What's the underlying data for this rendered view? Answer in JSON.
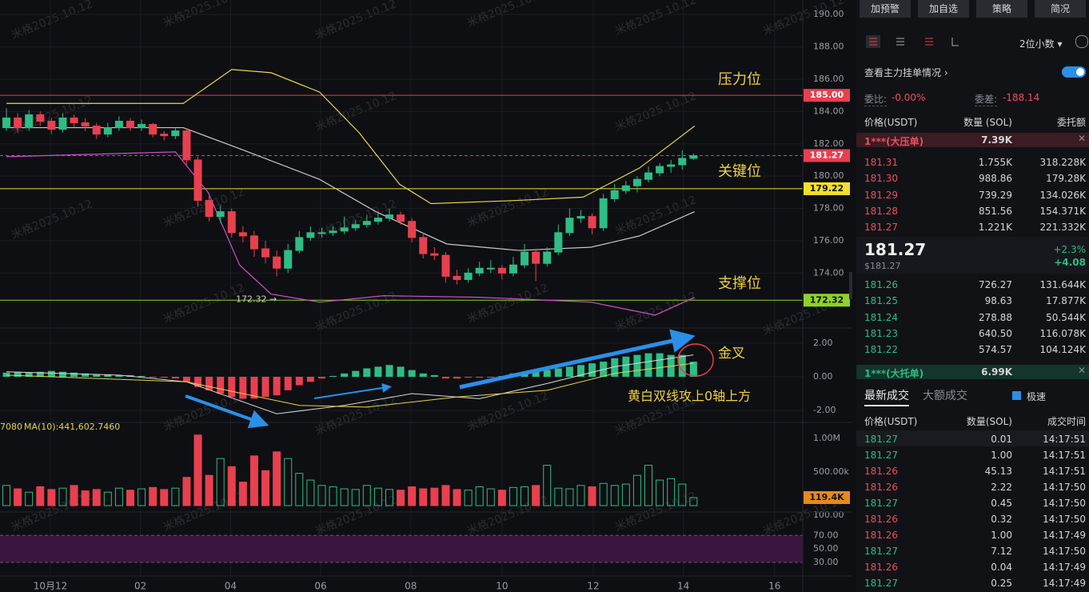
{
  "toolbar": {
    "buttons": [
      "加预警",
      "加自选",
      "策略",
      "简况"
    ]
  },
  "chart": {
    "watermark": "米格2025.10.12",
    "xlim": [
      -0.57,
      70.7
    ],
    "time_ticks": [
      {
        "value": 3.9,
        "label": "10月12"
      },
      {
        "value": 11.9,
        "label": "02"
      },
      {
        "value": 19.9,
        "label": "04"
      },
      {
        "value": 27.9,
        "label": "06"
      },
      {
        "value": 35.9,
        "label": "08"
      },
      {
        "value": 44.0,
        "label": "10"
      },
      {
        "value": 52.1,
        "label": "12"
      },
      {
        "value": 60.1,
        "label": "14"
      },
      {
        "value": 68.2,
        "label": "16"
      }
    ],
    "candles": [
      [
        183.0,
        184.2,
        182.8,
        183.6
      ],
      [
        183.6,
        183.9,
        182.7,
        183.0
      ],
      [
        183.0,
        184.1,
        182.8,
        183.8
      ],
      [
        183.8,
        184.0,
        183.1,
        183.4
      ],
      [
        183.4,
        183.6,
        182.6,
        182.9
      ],
      [
        182.9,
        183.9,
        182.7,
        183.6
      ],
      [
        183.6,
        183.8,
        183.0,
        183.3
      ],
      [
        183.3,
        183.6,
        182.8,
        183.1
      ],
      [
        183.1,
        183.3,
        182.3,
        182.6
      ],
      [
        182.6,
        183.3,
        182.4,
        183.0
      ],
      [
        183.0,
        183.7,
        182.8,
        183.4
      ],
      [
        183.4,
        183.6,
        182.8,
        183.0
      ],
      [
        183.0,
        183.5,
        182.8,
        183.2
      ],
      [
        183.2,
        183.3,
        182.4,
        182.6
      ],
      [
        182.6,
        182.8,
        182.2,
        182.5
      ],
      [
        182.5,
        183.0,
        182.3,
        182.8
      ],
      [
        182.8,
        182.9,
        180.7,
        181.0
      ],
      [
        181.0,
        181.2,
        178.1,
        178.5
      ],
      [
        178.5,
        178.9,
        177.2,
        177.5
      ],
      [
        177.5,
        178.2,
        177.1,
        177.8
      ],
      [
        177.8,
        178.0,
        176.2,
        176.5
      ],
      [
        176.5,
        176.9,
        175.9,
        176.3
      ],
      [
        176.3,
        176.6,
        175.0,
        175.5
      ],
      [
        175.5,
        176.0,
        174.6,
        175.0
      ],
      [
        175.0,
        175.4,
        173.8,
        174.3
      ],
      [
        174.3,
        175.8,
        174.0,
        175.4
      ],
      [
        175.4,
        176.6,
        175.2,
        176.2
      ],
      [
        176.2,
        176.9,
        176.0,
        176.5
      ],
      [
        176.5,
        176.8,
        176.2,
        176.5
      ],
      [
        176.5,
        176.9,
        176.3,
        176.6
      ],
      [
        176.6,
        177.5,
        176.4,
        176.8
      ],
      [
        176.8,
        177.3,
        176.6,
        177.0
      ],
      [
        177.0,
        177.6,
        176.8,
        177.2
      ],
      [
        177.2,
        177.8,
        177.0,
        177.4
      ],
      [
        177.4,
        178.0,
        177.2,
        177.6
      ],
      [
        177.6,
        177.8,
        177.0,
        177.2
      ],
      [
        177.2,
        177.4,
        175.9,
        176.2
      ],
      [
        176.2,
        176.5,
        174.9,
        175.2
      ],
      [
        175.2,
        175.6,
        174.8,
        175.1
      ],
      [
        175.1,
        175.3,
        173.4,
        173.8
      ],
      [
        173.8,
        174.2,
        173.3,
        173.6
      ],
      [
        173.6,
        174.3,
        173.4,
        174.0
      ],
      [
        174.0,
        174.7,
        173.8,
        174.3
      ],
      [
        174.3,
        174.8,
        174.0,
        174.3
      ],
      [
        174.3,
        174.5,
        173.6,
        174.0
      ],
      [
        174.0,
        175.0,
        173.8,
        174.5
      ],
      [
        174.5,
        175.8,
        174.3,
        175.3
      ],
      [
        175.3,
        175.5,
        173.5,
        174.6
      ],
      [
        174.6,
        175.6,
        174.4,
        175.3
      ],
      [
        175.3,
        177.0,
        175.1,
        176.5
      ],
      [
        176.5,
        178.0,
        176.3,
        177.4
      ],
      [
        177.4,
        177.9,
        177.1,
        177.5
      ],
      [
        177.5,
        177.7,
        176.4,
        176.8
      ],
      [
        176.8,
        178.9,
        176.6,
        178.6
      ],
      [
        178.6,
        179.5,
        178.4,
        179.1
      ],
      [
        179.1,
        179.7,
        178.9,
        179.4
      ],
      [
        179.4,
        180.0,
        179.0,
        179.8
      ],
      [
        179.8,
        180.6,
        179.6,
        180.2
      ],
      [
        180.2,
        180.8,
        180.0,
        180.6
      ],
      [
        180.6,
        181.0,
        180.2,
        180.7
      ],
      [
        180.7,
        181.6,
        180.4,
        181.1
      ],
      [
        181.1,
        181.4,
        181.0,
        181.27
      ]
    ],
    "up_color": "#2ebd85",
    "down_color": "#e8404f",
    "price": {
      "ylim": [
        170.6,
        190.9
      ],
      "yticks": [
        {
          "value": 190,
          "label": "190.00"
        },
        {
          "value": 188,
          "label": "188.00"
        },
        {
          "value": 186,
          "label": "186.00"
        },
        {
          "value": 184,
          "label": "184.00"
        },
        {
          "value": 182,
          "label": "182.00"
        },
        {
          "value": 180,
          "label": "180.00"
        },
        {
          "value": 178,
          "label": "178.00"
        },
        {
          "value": 176,
          "label": "176.00"
        },
        {
          "value": 174,
          "label": "174.00"
        }
      ],
      "levels": [
        {
          "value": 185,
          "label": "185.00",
          "color": "#e8404f",
          "dashed": false
        },
        {
          "value": 181.27,
          "label": "181.27",
          "color": "#e8404f",
          "dashed": true
        },
        {
          "value": 179.22,
          "label": "179.22",
          "color": "#f2e02a",
          "dashed": false
        },
        {
          "value": 172.32,
          "label": "172.32",
          "color": "#8ed12a",
          "dashed": false
        }
      ],
      "low_marker": {
        "value": 172.32,
        "label": "172.32"
      },
      "lines": [
        {
          "color": "#e8d44d",
          "x": [
            0,
            15.7,
            20,
            23.5,
            27.8,
            31.3,
            34.9,
            37.7,
            45.5,
            51.2,
            56.2,
            61.1
          ],
          "values": [
            184.5,
            184.5,
            186.6,
            186.4,
            185.2,
            182.7,
            179.5,
            178.3,
            178.5,
            178.7,
            180.5,
            183.1
          ]
        },
        {
          "color": "#c8c8c8",
          "x": [
            0,
            15.7,
            20.7,
            27.8,
            32.8,
            39.1,
            45.5,
            51.9,
            56.2,
            61.1
          ],
          "values": [
            183.0,
            183.0,
            181.7,
            179.8,
            177.8,
            175.8,
            175.4,
            175.6,
            176.3,
            177.8
          ]
        },
        {
          "color": "#d04fc8",
          "x": [
            0,
            15.0,
            17.9,
            20.7,
            23.5,
            27.8,
            33.5,
            42.0,
            51.9,
            57.6,
            61.1
          ],
          "values": [
            181.2,
            181.5,
            179.0,
            174.5,
            172.7,
            172.2,
            172.6,
            172.5,
            172.2,
            171.4,
            172.5
          ]
        }
      ],
      "annotations": [
        "压力位",
        "关键位",
        "支撑位"
      ]
    },
    "macd": {
      "ylim": [
        -2.71,
        2.9
      ],
      "yticks": [
        {
          "value": 2,
          "label": "2.00"
        },
        {
          "value": 0,
          "label": "0.00"
        },
        {
          "value": -2,
          "label": "-2.00"
        }
      ],
      "hist": [
        0.25,
        0.3,
        0.25,
        0.3,
        0.35,
        0.3,
        0.25,
        0.2,
        0.15,
        0.15,
        0.1,
        0.1,
        0.05,
        -0.05,
        -0.05,
        -0.1,
        -0.3,
        -0.6,
        -0.8,
        -1.0,
        -1.2,
        -1.3,
        -1.3,
        -1.2,
        -1.1,
        -0.8,
        -0.5,
        -0.3,
        -0.1,
        0.05,
        0.2,
        0.35,
        0.5,
        0.6,
        0.7,
        0.6,
        0.4,
        0.2,
        0.1,
        -0.1,
        -0.1,
        -0.05,
        -0.05,
        -0.02,
        0.05,
        0.2,
        0.3,
        0.35,
        0.4,
        0.5,
        0.6,
        0.7,
        0.8,
        0.9,
        1.1,
        1.2,
        1.3,
        1.4,
        1.4,
        1.3,
        1.3,
        0.9
      ],
      "lines": [
        {
          "color": "#d8d8d8",
          "x": [
            0,
            10,
            16,
            24,
            30,
            36,
            42,
            48,
            54,
            61
          ],
          "values": [
            0.3,
            0.1,
            -0.3,
            -2.2,
            -1.7,
            -1.0,
            -1.3,
            -0.4,
            0.6,
            1.3
          ]
        },
        {
          "color": "#e8d44d",
          "x": [
            0,
            16,
            26,
            32,
            40,
            48,
            54,
            61
          ],
          "values": [
            0.1,
            -0.3,
            -1.7,
            -1.8,
            -1.2,
            -0.8,
            0.2,
            0.8
          ]
        }
      ],
      "annotations": [
        "金叉",
        "黄白双线攻上0轴上方"
      ]
    },
    "volume": {
      "ylim": [
        -95,
        1238
      ],
      "yticks": [
        {
          "value": 1000,
          "label": "1.00M"
        },
        {
          "value": 500,
          "label": "500.00k"
        }
      ],
      "values": [
        300,
        250,
        200,
        280,
        240,
        260,
        300,
        220,
        240,
        200,
        260,
        230,
        250,
        270,
        240,
        260,
        420,
        1050,
        450,
        700,
        580,
        350,
        740,
        520,
        800,
        700,
        480,
        380,
        300,
        280,
        250,
        240,
        300,
        260,
        240,
        230,
        280,
        250,
        260,
        300,
        240,
        230,
        280,
        250,
        230,
        270,
        280,
        300,
        600,
        260,
        250,
        300,
        280,
        330,
        300,
        320,
        450,
        600,
        380,
        400,
        320,
        119.4
      ],
      "last_label": "119.4K",
      "ma_label": "7080",
      "ma_text": "MA(10):441,602.7460"
    },
    "osc": {
      "ylim": [
        9.8,
        104.7
      ],
      "yticks": [
        {
          "value": 100,
          "label": "100.00"
        },
        {
          "value": 70,
          "label": "70.00"
        },
        {
          "value": 50,
          "label": "50.00"
        },
        {
          "value": 30,
          "label": "30.00"
        }
      ],
      "band": [
        30,
        70
      ]
    }
  },
  "panel": {
    "decimals": "2位小数",
    "main_orders": "查看主力挂单情况",
    "ratio_label": "委比:",
    "ratio": "-0.00%",
    "diff_label": "委差:",
    "diff": "-188.14",
    "book_header": [
      "价格(USDT)",
      "数量 (SOL)",
      "委托额"
    ],
    "big_ask": [
      "1***(大压单)",
      "7.39K"
    ],
    "asks": [
      [
        "181.31",
        "1.755K",
        "318.228K"
      ],
      [
        "181.30",
        "988.86",
        "179.28K"
      ],
      [
        "181.29",
        "739.29",
        "134.026K"
      ],
      [
        "181.28",
        "851.56",
        "154.371K"
      ],
      [
        "181.27",
        "1.221K",
        "221.332K"
      ]
    ],
    "last_price": "181.27",
    "last_usd": "$181.27",
    "change_pct": "+2.3%",
    "change": "+4.08",
    "bids": [
      [
        "181.26",
        "726.27",
        "131.644K"
      ],
      [
        "181.25",
        "98.63",
        "17.877K"
      ],
      [
        "181.24",
        "278.88",
        "50.544K"
      ],
      [
        "181.23",
        "640.50",
        "116.078K"
      ],
      [
        "181.22",
        "574.57",
        "104.124K"
      ]
    ],
    "big_bid": [
      "1***(大托单)",
      "6.99K"
    ],
    "tabs": [
      "最新成交",
      "大额成交"
    ],
    "fast": "极速",
    "trade_header": [
      "价格(USDT)",
      "数量(SOL)",
      "成交时间"
    ],
    "trades": [
      [
        "181.27",
        "0.01",
        "14:17:51",
        "buy"
      ],
      [
        "181.27",
        "1.00",
        "14:17:51",
        "buy"
      ],
      [
        "181.26",
        "45.13",
        "14:17:51",
        "sell"
      ],
      [
        "181.26",
        "2.22",
        "14:17:50",
        "sell"
      ],
      [
        "181.27",
        "0.45",
        "14:17:50",
        "buy"
      ],
      [
        "181.26",
        "0.32",
        "14:17:50",
        "sell"
      ],
      [
        "181.26",
        "1.00",
        "14:17:49",
        "sell"
      ],
      [
        "181.27",
        "7.12",
        "14:17:50",
        "buy"
      ],
      [
        "181.26",
        "0.04",
        "14:17:49",
        "sell"
      ],
      [
        "181.27",
        "0.25",
        "14:17:49",
        "buy"
      ]
    ]
  }
}
